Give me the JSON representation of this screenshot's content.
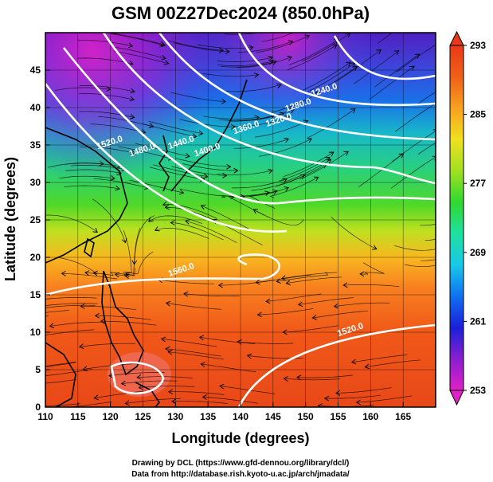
{
  "title": "GSM 00Z27Dec2024 (850.0hPa)",
  "x_axis": {
    "label": "Longitude (degrees)",
    "range": [
      110,
      170
    ],
    "ticks": [
      "110",
      "115",
      "120",
      "125",
      "130",
      "135",
      "140",
      "145",
      "150",
      "155",
      "160",
      "165"
    ]
  },
  "y_axis": {
    "label": "Latitude  (degrees)",
    "range": [
      0,
      50
    ],
    "ticks": [
      "0",
      "5",
      "10",
      "15",
      "20",
      "25",
      "30",
      "35",
      "40",
      "45"
    ]
  },
  "colorbar": {
    "ticks": [
      "293",
      "285",
      "277",
      "269",
      "261",
      "253"
    ],
    "range": [
      253,
      293
    ],
    "colors_low_to_high": [
      "#e020c8",
      "#8a1fd0",
      "#1a20d8",
      "#1070f0",
      "#18c8e8",
      "#20e0a0",
      "#30d830",
      "#a0e020",
      "#f0e020",
      "#f8a020",
      "#f06018",
      "#e83818"
    ]
  },
  "contour_labels": [
    {
      "text": "1240.0",
      "lon": 153,
      "lat": 42
    },
    {
      "text": "1280.0",
      "lon": 149,
      "lat": 40
    },
    {
      "text": "1320.0",
      "lon": 146,
      "lat": 38
    },
    {
      "text": "1360.0",
      "lon": 141,
      "lat": 37
    },
    {
      "text": "1400.0",
      "lon": 135,
      "lat": 34
    },
    {
      "text": "1440.0",
      "lon": 131,
      "lat": 35
    },
    {
      "text": "1480.0",
      "lon": 125,
      "lat": 34
    },
    {
      "text": "1520.0",
      "lon": 120,
      "lat": 35
    },
    {
      "text": "1560.0",
      "lon": 131,
      "lat": 18
    },
    {
      "text": "1520.0",
      "lon": 157,
      "lat": 10
    }
  ],
  "credits": {
    "line1": "Drawing by DCL (https://www.gfd-dennou.org/library/dcl/)",
    "line2": "Data from http://database.rish.kyoto-u.ac.jp/arch/jmadata/"
  }
}
